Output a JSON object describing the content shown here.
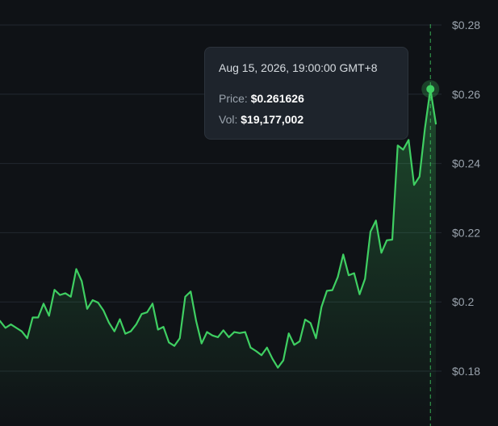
{
  "chart_data": {
    "type": "area",
    "title": "",
    "xlabel": "",
    "ylabel": "",
    "ylim": [
      0.17,
      0.285
    ],
    "y_ticks": [
      "$0.28",
      "$0.26",
      "$0.24",
      "$0.22",
      "$0.2",
      "$0.18"
    ],
    "y_tick_values": [
      0.28,
      0.26,
      0.24,
      0.22,
      0.2,
      0.18
    ],
    "grid": true,
    "line_color": "#3fcf62",
    "values": [
      0.1945,
      0.1925,
      0.1935,
      0.1925,
      0.1915,
      0.1895,
      0.1955,
      0.1955,
      0.1995,
      0.196,
      0.2035,
      0.202,
      0.2025,
      0.2015,
      0.2095,
      0.206,
      0.198,
      0.2005,
      0.1998,
      0.1975,
      0.194,
      0.1915,
      0.195,
      0.1908,
      0.1915,
      0.1935,
      0.1965,
      0.197,
      0.1995,
      0.192,
      0.1928,
      0.1883,
      0.1873,
      0.1895,
      0.2015,
      0.203,
      0.1945,
      0.188,
      0.1913,
      0.1903,
      0.1898,
      0.1918,
      0.1898,
      0.1913,
      0.191,
      0.1913,
      0.1868,
      0.1858,
      0.1846,
      0.1868,
      0.1836,
      0.181,
      0.1831,
      0.1909,
      0.1876,
      0.1886,
      0.1949,
      0.1939,
      0.1895,
      0.1985,
      0.2032,
      0.2034,
      0.2072,
      0.2137,
      0.2077,
      0.2083,
      0.2022,
      0.2067,
      0.2203,
      0.2235,
      0.2142,
      0.2178,
      0.218,
      0.2452,
      0.244,
      0.2468,
      0.2338,
      0.2362,
      0.2502,
      0.2615,
      0.2515
    ],
    "highlight": {
      "index": 79,
      "date": "Aug 15, 2026, 19:00:00 GMT+8",
      "price_label": "Price:",
      "price": "$0.261626",
      "vol_label": "Vol:",
      "vol": "$19,177,002"
    }
  }
}
